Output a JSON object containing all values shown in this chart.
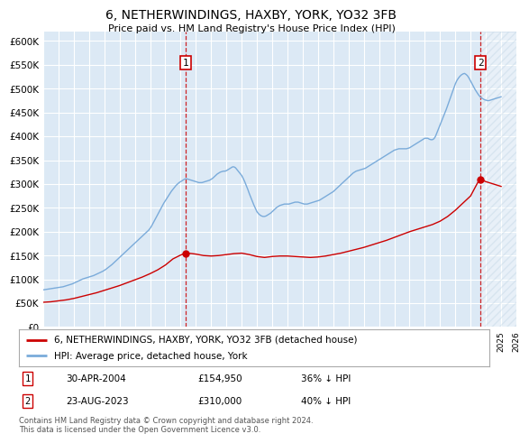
{
  "title": "6, NETHERWINDINGS, HAXBY, YORK, YO32 3FB",
  "subtitle": "Price paid vs. HM Land Registry's House Price Index (HPI)",
  "ylim": [
    0,
    620000
  ],
  "xlim_start": 1995.25,
  "xlim_end": 2026.0,
  "bg_color": "#dce9f5",
  "grid_color": "#ffffff",
  "sale1_x": 2004.33,
  "sale1_y": 154950,
  "sale1_label": "30-APR-2004",
  "sale1_price": "£154,950",
  "sale1_hpi": "36% ↓ HPI",
  "sale2_x": 2023.64,
  "sale2_y": 310000,
  "sale2_label": "23-AUG-2023",
  "sale2_price": "£310,000",
  "sale2_hpi": "40% ↓ HPI",
  "legend_line1": "6, NETHERWINDINGS, HAXBY, YORK, YO32 3FB (detached house)",
  "legend_line2": "HPI: Average price, detached house, York",
  "footer": "Contains HM Land Registry data © Crown copyright and database right 2024.\nThis data is licensed under the Open Government Licence v3.0.",
  "red_line_color": "#cc0000",
  "blue_line_color": "#7aabda",
  "hpi_years": [
    1995.0,
    1995.1,
    1995.2,
    1995.3,
    1995.4,
    1995.5,
    1995.6,
    1995.7,
    1995.8,
    1995.9,
    1996.0,
    1996.1,
    1996.2,
    1996.3,
    1996.4,
    1996.5,
    1996.6,
    1996.7,
    1996.8,
    1996.9,
    1997.0,
    1997.1,
    1997.2,
    1997.3,
    1997.4,
    1997.5,
    1997.6,
    1997.7,
    1997.8,
    1997.9,
    1998.0,
    1998.1,
    1998.2,
    1998.3,
    1998.4,
    1998.5,
    1998.6,
    1998.7,
    1998.8,
    1998.9,
    1999.0,
    1999.1,
    1999.2,
    1999.3,
    1999.4,
    1999.5,
    1999.6,
    1999.7,
    1999.8,
    1999.9,
    2000.0,
    2000.1,
    2000.2,
    2000.3,
    2000.4,
    2000.5,
    2000.6,
    2000.7,
    2000.8,
    2000.9,
    2001.0,
    2001.1,
    2001.2,
    2001.3,
    2001.4,
    2001.5,
    2001.6,
    2001.7,
    2001.8,
    2001.9,
    2002.0,
    2002.1,
    2002.2,
    2002.3,
    2002.4,
    2002.5,
    2002.6,
    2002.7,
    2002.8,
    2002.9,
    2003.0,
    2003.1,
    2003.2,
    2003.3,
    2003.4,
    2003.5,
    2003.6,
    2003.7,
    2003.8,
    2003.9,
    2004.0,
    2004.1,
    2004.2,
    2004.3,
    2004.4,
    2004.5,
    2004.6,
    2004.7,
    2004.8,
    2004.9,
    2005.0,
    2005.1,
    2005.2,
    2005.3,
    2005.4,
    2005.5,
    2005.6,
    2005.7,
    2005.8,
    2005.9,
    2006.0,
    2006.1,
    2006.2,
    2006.3,
    2006.4,
    2006.5,
    2006.6,
    2006.7,
    2006.8,
    2006.9,
    2007.0,
    2007.1,
    2007.2,
    2007.3,
    2007.4,
    2007.5,
    2007.6,
    2007.7,
    2007.8,
    2007.9,
    2008.0,
    2008.1,
    2008.2,
    2008.3,
    2008.4,
    2008.5,
    2008.6,
    2008.7,
    2008.8,
    2008.9,
    2009.0,
    2009.1,
    2009.2,
    2009.3,
    2009.4,
    2009.5,
    2009.6,
    2009.7,
    2009.8,
    2009.9,
    2010.0,
    2010.1,
    2010.2,
    2010.3,
    2010.4,
    2010.5,
    2010.6,
    2010.7,
    2010.8,
    2010.9,
    2011.0,
    2011.1,
    2011.2,
    2011.3,
    2011.4,
    2011.5,
    2011.6,
    2011.7,
    2011.8,
    2011.9,
    2012.0,
    2012.1,
    2012.2,
    2012.3,
    2012.4,
    2012.5,
    2012.6,
    2012.7,
    2012.8,
    2012.9,
    2013.0,
    2013.1,
    2013.2,
    2013.3,
    2013.4,
    2013.5,
    2013.6,
    2013.7,
    2013.8,
    2013.9,
    2014.0,
    2014.1,
    2014.2,
    2014.3,
    2014.4,
    2014.5,
    2014.6,
    2014.7,
    2014.8,
    2014.9,
    2015.0,
    2015.1,
    2015.2,
    2015.3,
    2015.4,
    2015.5,
    2015.6,
    2015.7,
    2015.8,
    2015.9,
    2016.0,
    2016.1,
    2016.2,
    2016.3,
    2016.4,
    2016.5,
    2016.6,
    2016.7,
    2016.8,
    2016.9,
    2017.0,
    2017.1,
    2017.2,
    2017.3,
    2017.4,
    2017.5,
    2017.6,
    2017.7,
    2017.8,
    2017.9,
    2018.0,
    2018.1,
    2018.2,
    2018.3,
    2018.4,
    2018.5,
    2018.6,
    2018.7,
    2018.8,
    2018.9,
    2019.0,
    2019.1,
    2019.2,
    2019.3,
    2019.4,
    2019.5,
    2019.6,
    2019.7,
    2019.8,
    2019.9,
    2020.0,
    2020.1,
    2020.2,
    2020.3,
    2020.4,
    2020.5,
    2020.6,
    2020.7,
    2020.8,
    2020.9,
    2021.0,
    2021.1,
    2021.2,
    2021.3,
    2021.4,
    2021.5,
    2021.6,
    2021.7,
    2021.8,
    2021.9,
    2022.0,
    2022.1,
    2022.2,
    2022.3,
    2022.4,
    2022.5,
    2022.6,
    2022.7,
    2022.8,
    2022.9,
    2023.0,
    2023.1,
    2023.2,
    2023.3,
    2023.4,
    2023.5,
    2023.6,
    2023.7,
    2023.8,
    2023.9,
    2024.0,
    2024.1,
    2024.2,
    2024.3,
    2024.4,
    2024.5,
    2024.6,
    2024.7,
    2024.8,
    2024.9,
    2025.0
  ],
  "hpi_values": [
    78000,
    78500,
    79000,
    79500,
    80000,
    80500,
    81000,
    81500,
    82000,
    82500,
    83000,
    83500,
    84000,
    84500,
    85500,
    86500,
    87500,
    88500,
    89500,
    90500,
    92000,
    93500,
    95000,
    96500,
    98000,
    99500,
    101000,
    102000,
    103000,
    104000,
    105000,
    106000,
    107000,
    108000,
    109500,
    111000,
    112500,
    114000,
    115500,
    117000,
    119000,
    121000,
    123500,
    126000,
    128500,
    131000,
    134000,
    137000,
    140000,
    143000,
    146000,
    149000,
    152000,
    155000,
    158000,
    161000,
    164000,
    167000,
    170000,
    173000,
    176000,
    179000,
    182000,
    185000,
    188000,
    191000,
    194000,
    197000,
    200000,
    203000,
    207000,
    212000,
    218000,
    224000,
    230000,
    236000,
    242000,
    248000,
    254000,
    260000,
    265000,
    270000,
    275000,
    280000,
    285000,
    289000,
    293000,
    297000,
    300000,
    303000,
    305000,
    307000,
    309000,
    311000,
    311000,
    310000,
    309000,
    308000,
    307000,
    306000,
    305000,
    304000,
    303000,
    303000,
    303000,
    304000,
    305000,
    306000,
    307000,
    308000,
    310000,
    312000,
    315000,
    318000,
    321000,
    323000,
    325000,
    326000,
    327000,
    327000,
    328000,
    330000,
    332000,
    334000,
    336000,
    336000,
    334000,
    330000,
    326000,
    322000,
    318000,
    312000,
    305000,
    297000,
    289000,
    280000,
    272000,
    264000,
    256000,
    249000,
    242000,
    238000,
    235000,
    233000,
    232000,
    232000,
    233000,
    235000,
    237000,
    239000,
    242000,
    245000,
    248000,
    251000,
    253000,
    255000,
    256000,
    257000,
    258000,
    258000,
    258000,
    258000,
    259000,
    260000,
    261000,
    262000,
    262000,
    262000,
    261000,
    260000,
    259000,
    258000,
    258000,
    258000,
    259000,
    260000,
    261000,
    262000,
    263000,
    264000,
    265000,
    266000,
    268000,
    270000,
    272000,
    274000,
    276000,
    278000,
    280000,
    282000,
    284000,
    287000,
    290000,
    293000,
    296000,
    299000,
    302000,
    305000,
    308000,
    311000,
    314000,
    317000,
    320000,
    323000,
    325000,
    327000,
    328000,
    329000,
    330000,
    331000,
    332000,
    333000,
    335000,
    337000,
    339000,
    341000,
    343000,
    345000,
    347000,
    349000,
    351000,
    353000,
    355000,
    357000,
    359000,
    361000,
    363000,
    365000,
    367000,
    369000,
    371000,
    372000,
    373000,
    374000,
    374000,
    374000,
    374000,
    374000,
    374000,
    375000,
    376000,
    378000,
    380000,
    382000,
    384000,
    386000,
    388000,
    390000,
    392000,
    394000,
    396000,
    396000,
    396000,
    394000,
    393000,
    393000,
    395000,
    400000,
    408000,
    416000,
    424000,
    432000,
    440000,
    448000,
    456000,
    465000,
    474000,
    483000,
    492000,
    501000,
    510000,
    517000,
    522000,
    526000,
    529000,
    531000,
    532000,
    530000,
    527000,
    522000,
    516000,
    510000,
    504000,
    498000,
    493000,
    488000,
    484000,
    481000,
    479000,
    477000,
    476000,
    475000,
    475000,
    476000,
    477000,
    478000,
    479000,
    480000,
    481000,
    482000,
    483000
  ],
  "red_years": [
    1995.0,
    1995.5,
    1996.0,
    1996.5,
    1997.0,
    1997.5,
    1998.0,
    1998.5,
    1999.0,
    1999.5,
    2000.0,
    2000.5,
    2001.0,
    2001.5,
    2002.0,
    2002.5,
    2003.0,
    2003.5,
    2004.0,
    2004.33,
    2004.5,
    2005.0,
    2005.5,
    2006.0,
    2006.5,
    2007.0,
    2007.5,
    2008.0,
    2008.5,
    2009.0,
    2009.5,
    2010.0,
    2010.5,
    2011.0,
    2011.5,
    2012.0,
    2012.5,
    2013.0,
    2013.5,
    2014.0,
    2014.5,
    2015.0,
    2015.5,
    2016.0,
    2016.5,
    2017.0,
    2017.5,
    2018.0,
    2018.5,
    2019.0,
    2019.5,
    2020.0,
    2020.5,
    2021.0,
    2021.5,
    2022.0,
    2022.5,
    2023.0,
    2023.5,
    2023.64,
    2024.0,
    2024.5,
    2025.0
  ],
  "red_values": [
    52000,
    53000,
    55000,
    57000,
    60000,
    64000,
    68000,
    72000,
    77000,
    82000,
    87000,
    93000,
    99000,
    105000,
    112000,
    120000,
    130000,
    143000,
    151000,
    154950,
    155000,
    153000,
    150000,
    149000,
    150000,
    152000,
    154000,
    155000,
    152000,
    148000,
    146000,
    148000,
    149000,
    149000,
    148000,
    147000,
    146000,
    147000,
    149000,
    152000,
    155000,
    159000,
    163000,
    167000,
    172000,
    177000,
    182000,
    188000,
    194000,
    200000,
    205000,
    210000,
    215000,
    222000,
    232000,
    245000,
    260000,
    275000,
    305000,
    310000,
    305000,
    300000,
    295000
  ]
}
